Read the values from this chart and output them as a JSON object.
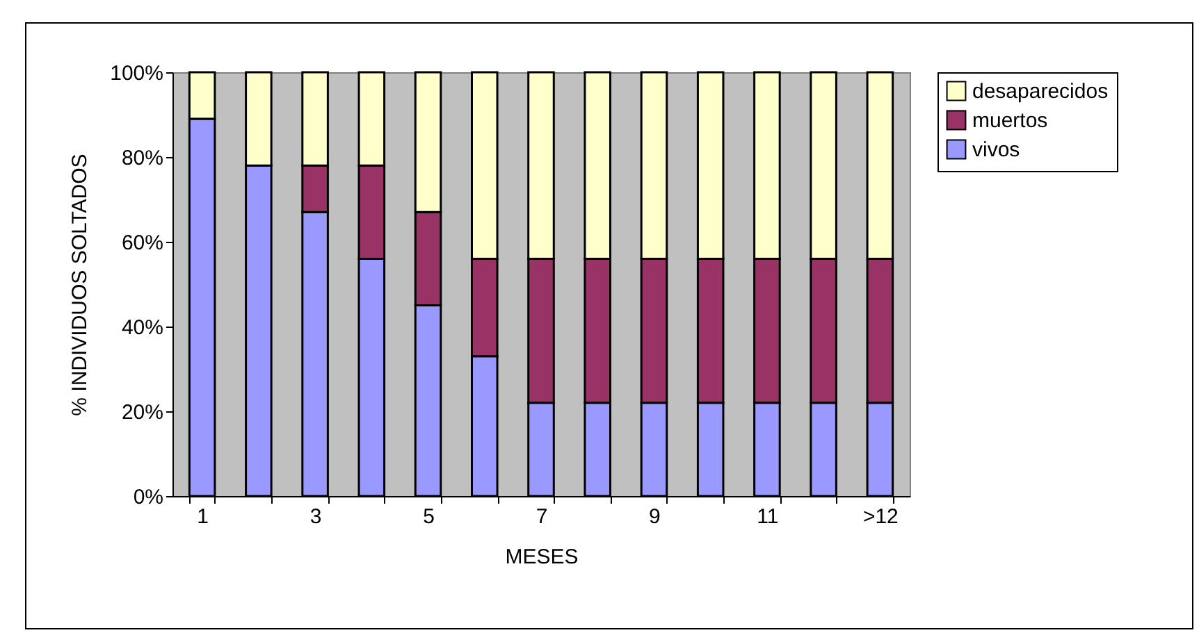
{
  "chart_data": {
    "type": "bar",
    "stacked": true,
    "xlabel": "MESES",
    "ylabel": "% INDIVIDUOS SOLTADOS",
    "categories": [
      "1",
      null,
      "3",
      null,
      "5",
      null,
      "7",
      null,
      "9",
      null,
      "11",
      null,
      ">12"
    ],
    "series": [
      {
        "name": "vivos",
        "color": "#9999ff",
        "values": [
          89,
          78,
          67,
          56,
          45,
          33,
          22,
          22,
          22,
          22,
          22,
          22,
          22
        ]
      },
      {
        "name": "muertos",
        "color": "#993366",
        "values": [
          null,
          null,
          11,
          22,
          22,
          23,
          34,
          34,
          34,
          34,
          34,
          34,
          34
        ]
      },
      {
        "name": "desaparecidos",
        "color": "#ffffcc",
        "values": [
          11,
          22,
          22,
          22,
          33,
          44,
          44,
          44,
          44,
          44,
          44,
          44,
          44
        ]
      }
    ],
    "ylim": [
      0,
      100
    ],
    "yticks": [
      {
        "value": 0,
        "label": "0%"
      },
      {
        "value": 20,
        "label": "20%"
      },
      {
        "value": 40,
        "label": "40%"
      },
      {
        "value": 60,
        "label": "60%"
      },
      {
        "value": 80,
        "label": "80%"
      },
      {
        "value": 100,
        "label": "100%"
      }
    ],
    "grid": false,
    "legend": "right"
  }
}
